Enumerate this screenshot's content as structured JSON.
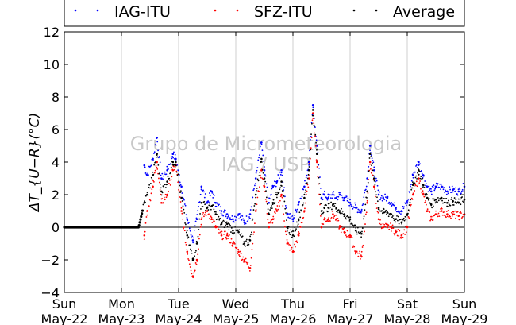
{
  "chart_data": {
    "type": "scatter",
    "title": "",
    "xlabel": "",
    "ylabel": "ΔT_{U−R}(°C)",
    "ylim": [
      -4,
      12
    ],
    "xlim": [
      0,
      7
    ],
    "x_unit": "days from Sun May-22",
    "yticks": [
      -4,
      -2,
      0,
      2,
      4,
      6,
      8,
      10,
      12
    ],
    "xticks": [
      {
        "x": 0,
        "day": "Sun",
        "date": "May-22"
      },
      {
        "x": 1,
        "day": "Mon",
        "date": "May-23"
      },
      {
        "x": 2,
        "day": "Tue",
        "date": "May-24"
      },
      {
        "x": 3,
        "day": "Wed",
        "date": "May-25"
      },
      {
        "x": 4,
        "day": "Thu",
        "date": "May-26"
      },
      {
        "x": 5,
        "day": "Fri",
        "date": "May-27"
      },
      {
        "x": 6,
        "day": "Sat",
        "date": "May-28"
      },
      {
        "x": 7,
        "day": "Sun",
        "date": "May-29"
      }
    ],
    "grid": "vertical",
    "zero_line": true,
    "legend_position": "top",
    "watermark": [
      "Grupo de Micrometeorologia",
      "IAG / USP"
    ],
    "series": [
      {
        "name": "IAG-ITU",
        "color": "#0000ff",
        "x": [
          1.4,
          1.45,
          1.55,
          1.62,
          1.7,
          1.8,
          1.9,
          1.95,
          2.05,
          2.15,
          2.25,
          2.32,
          2.4,
          2.5,
          2.58,
          2.65,
          2.75,
          2.85,
          2.95,
          3.05,
          3.15,
          3.25,
          3.35,
          3.45,
          3.5,
          3.58,
          3.65,
          3.72,
          3.8,
          3.9,
          4.0,
          4.1,
          4.2,
          4.28,
          4.35,
          4.42,
          4.5,
          4.55,
          4.62,
          4.7,
          4.76,
          4.82,
          4.9,
          5.0,
          5.1,
          5.2,
          5.3,
          5.35,
          5.42,
          5.5,
          5.58,
          5.65,
          5.72,
          5.8,
          5.9,
          6.0,
          6.1,
          6.2,
          6.28,
          6.35,
          6.42,
          6.5,
          6.6,
          6.7,
          6.8,
          6.9,
          7.0
        ],
        "y": [
          3.8,
          3.2,
          4.2,
          5.5,
          3.0,
          3.5,
          4.5,
          4.2,
          2.5,
          0.5,
          -0.8,
          0.5,
          2.5,
          1.5,
          2.2,
          1.5,
          1.0,
          0.8,
          0.5,
          0.8,
          0.3,
          0.8,
          3.0,
          5.2,
          3.5,
          1.5,
          2.5,
          2.8,
          3.5,
          0.8,
          0.5,
          1.5,
          2.5,
          4.0,
          7.5,
          5.0,
          1.8,
          2.0,
          1.8,
          2.0,
          1.8,
          2.0,
          1.8,
          1.5,
          1.2,
          1.0,
          3.0,
          5.0,
          3.5,
          2.0,
          1.8,
          1.8,
          1.5,
          1.2,
          1.0,
          1.5,
          3.2,
          4.0,
          3.2,
          2.5,
          2.2,
          2.5,
          2.5,
          2.2,
          2.3,
          2.2,
          2.5
        ]
      },
      {
        "name": "SFZ-ITU",
        "color": "#ff0000",
        "x": [
          1.4,
          1.45,
          1.55,
          1.62,
          1.7,
          1.8,
          1.9,
          1.95,
          2.05,
          2.15,
          2.25,
          2.32,
          2.4,
          2.5,
          2.58,
          2.65,
          2.75,
          2.85,
          2.95,
          3.05,
          3.15,
          3.25,
          3.35,
          3.45,
          3.5,
          3.58,
          3.65,
          3.72,
          3.8,
          3.9,
          4.0,
          4.1,
          4.2,
          4.28,
          4.35,
          4.42,
          4.5,
          4.55,
          4.62,
          4.7,
          4.76,
          4.82,
          4.9,
          5.0,
          5.1,
          5.2,
          5.3,
          5.35,
          5.42,
          5.5,
          5.58,
          5.65,
          5.72,
          5.8,
          5.9,
          6.0,
          6.1,
          6.2,
          6.28,
          6.35,
          6.42,
          6.5,
          6.6,
          6.7,
          6.8,
          6.9,
          7.0
        ],
        "y": [
          -0.5,
          1.0,
          2.5,
          4.0,
          1.5,
          2.0,
          3.5,
          3.8,
          1.0,
          -1.5,
          -3.0,
          -2.0,
          0.5,
          1.0,
          0.5,
          0.0,
          -0.5,
          -0.5,
          -1.0,
          -1.5,
          -2.0,
          -2.5,
          1.0,
          3.5,
          2.5,
          0.0,
          0.5,
          1.0,
          2.0,
          -1.0,
          -1.5,
          -0.5,
          1.0,
          3.0,
          7.0,
          4.0,
          0.0,
          0.5,
          0.5,
          0.8,
          0.5,
          0.0,
          -0.3,
          -0.5,
          -1.5,
          -1.8,
          1.5,
          4.0,
          2.5,
          0.5,
          0.0,
          0.0,
          0.0,
          -0.3,
          -0.5,
          0.0,
          2.0,
          3.0,
          2.0,
          1.0,
          0.5,
          0.8,
          1.0,
          0.8,
          0.8,
          0.7,
          0.8
        ]
      },
      {
        "name": "Average",
        "color": "#000000",
        "x": [
          0.0,
          0.1,
          0.2,
          0.3,
          0.4,
          0.5,
          0.6,
          0.7,
          0.8,
          0.9,
          1.0,
          1.1,
          1.2,
          1.3,
          1.4,
          1.45,
          1.55,
          1.62,
          1.7,
          1.8,
          1.9,
          1.95,
          2.05,
          2.15,
          2.25,
          2.32,
          2.4,
          2.5,
          2.58,
          2.65,
          2.75,
          2.85,
          2.95,
          3.05,
          3.15,
          3.25,
          3.35,
          3.45,
          3.5,
          3.58,
          3.65,
          3.72,
          3.8,
          3.9,
          4.0,
          4.1,
          4.2,
          4.28,
          4.35,
          4.42,
          4.5,
          4.55,
          4.62,
          4.7,
          4.76,
          4.82,
          4.9,
          5.0,
          5.1,
          5.2,
          5.3,
          5.35,
          5.42,
          5.5,
          5.58,
          5.65,
          5.72,
          5.8,
          5.9,
          6.0,
          6.1,
          6.2,
          6.28,
          6.35,
          6.42,
          6.5,
          6.6,
          6.7,
          6.8,
          6.9,
          7.0
        ],
        "y": [
          0,
          0,
          0,
          0,
          0,
          0,
          0,
          0,
          0,
          0,
          0,
          0,
          0,
          0,
          1.5,
          2.0,
          3.2,
          4.5,
          2.2,
          2.8,
          4.0,
          4.0,
          1.8,
          -0.5,
          -2.0,
          -1.0,
          1.5,
          1.2,
          1.3,
          0.8,
          0.2,
          0.2,
          -0.2,
          -0.3,
          -1.0,
          -0.8,
          2.0,
          4.2,
          3.0,
          0.8,
          1.5,
          2.0,
          2.8,
          0.0,
          -0.5,
          0.5,
          1.8,
          3.5,
          7.2,
          4.5,
          1.0,
          1.2,
          1.2,
          1.4,
          1.2,
          1.0,
          0.8,
          0.5,
          -0.2,
          -0.4,
          2.2,
          4.5,
          3.0,
          1.2,
          0.9,
          0.9,
          0.8,
          0.5,
          0.3,
          0.8,
          2.6,
          3.5,
          2.6,
          1.8,
          1.4,
          1.7,
          1.8,
          1.5,
          1.6,
          1.5,
          1.7
        ]
      }
    ]
  }
}
